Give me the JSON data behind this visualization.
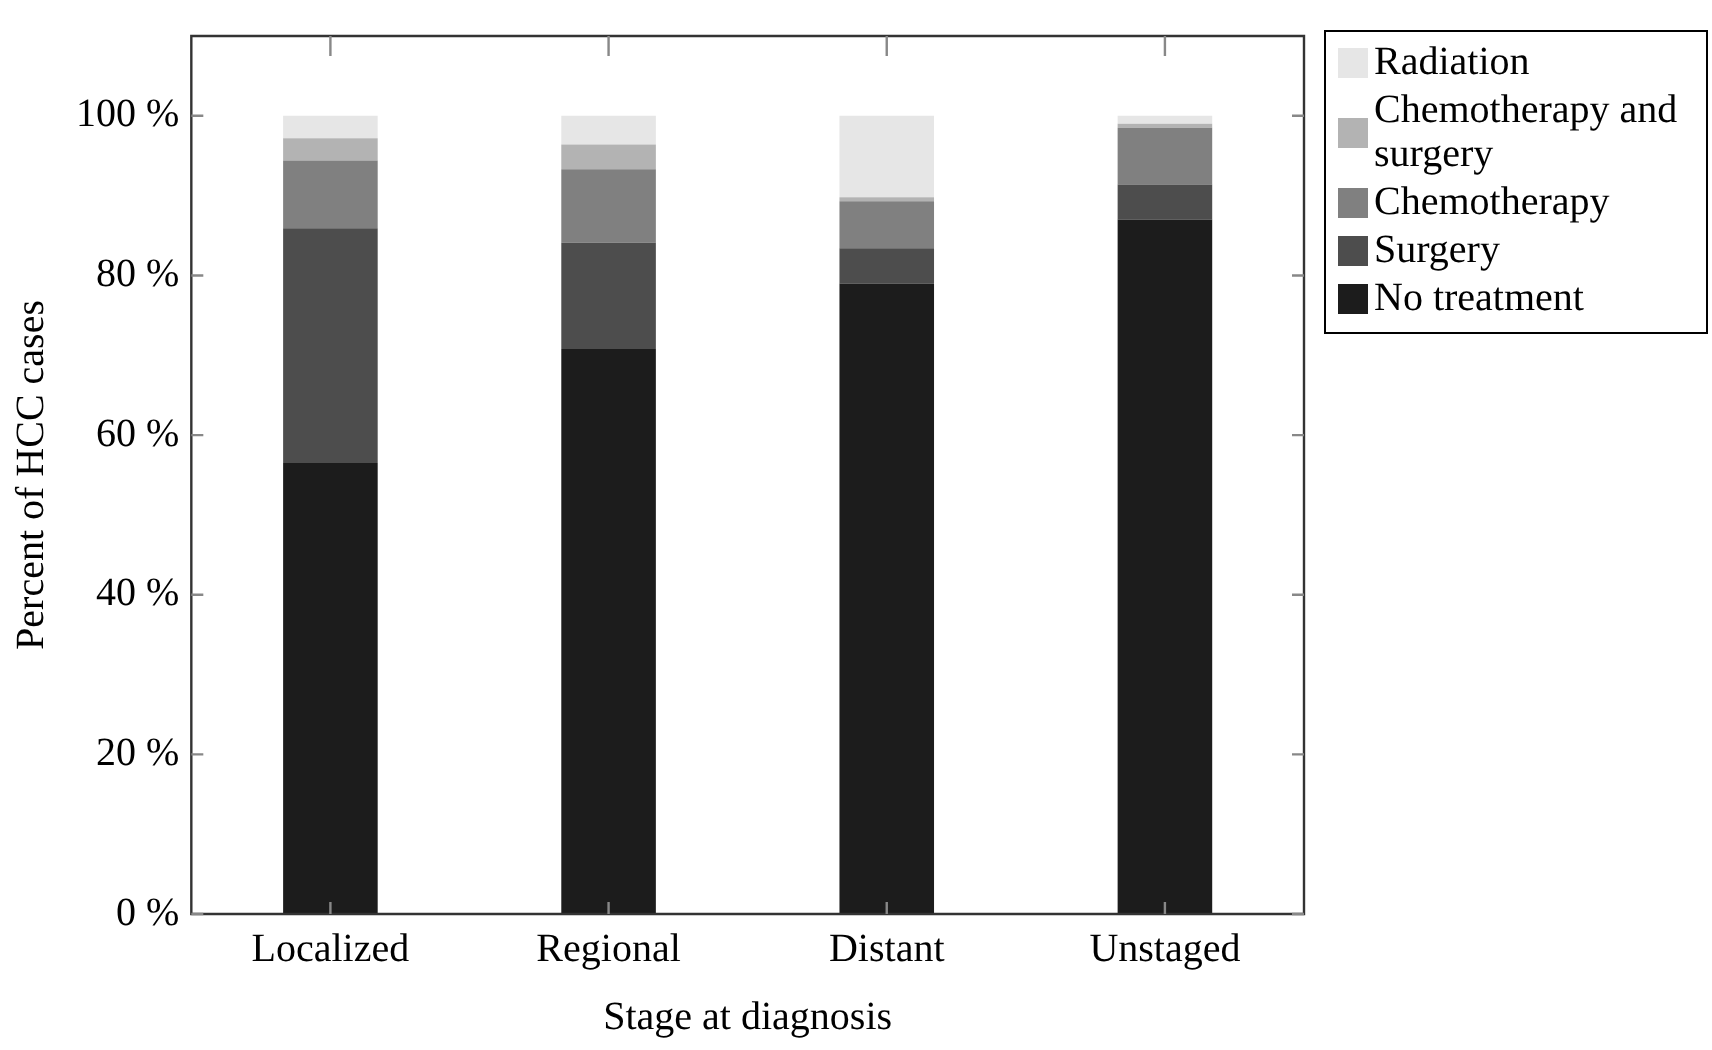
{
  "chart_data": {
    "type": "bar",
    "stacked": true,
    "xlabel": "Stage at diagnosis",
    "ylabel": "Percent of HCC cases",
    "categories": [
      "Localized",
      "Regional",
      "Distant",
      "Unstaged"
    ],
    "series": [
      {
        "name": "No treatment",
        "color": "#1c1c1c",
        "values": [
          56.5,
          70.8,
          79.0,
          87.0
        ]
      },
      {
        "name": "Surgery",
        "color": "#4d4d4d",
        "values": [
          29.4,
          13.3,
          4.4,
          4.4
        ]
      },
      {
        "name": "Chemotherapy",
        "color": "#808080",
        "values": [
          8.5,
          9.2,
          5.9,
          7.1
        ]
      },
      {
        "name": "Chemotherapy and surgery",
        "color": "#b3b3b3",
        "values": [
          2.8,
          3.1,
          0.5,
          0.5
        ]
      },
      {
        "name": "Radiation",
        "color": "#e6e6e6",
        "values": [
          2.8,
          3.6,
          10.2,
          1.0
        ]
      }
    ],
    "ylim": [
      0,
      110
    ],
    "yticks": [
      {
        "value": 0,
        "label": "0 %"
      },
      {
        "value": 20,
        "label": "20 %"
      },
      {
        "value": 40,
        "label": "40 %"
      },
      {
        "value": 60,
        "label": "60 %"
      },
      {
        "value": 80,
        "label": "80 %"
      },
      {
        "value": 100,
        "label": "100 %"
      }
    ],
    "grid": false,
    "legend": "right"
  }
}
